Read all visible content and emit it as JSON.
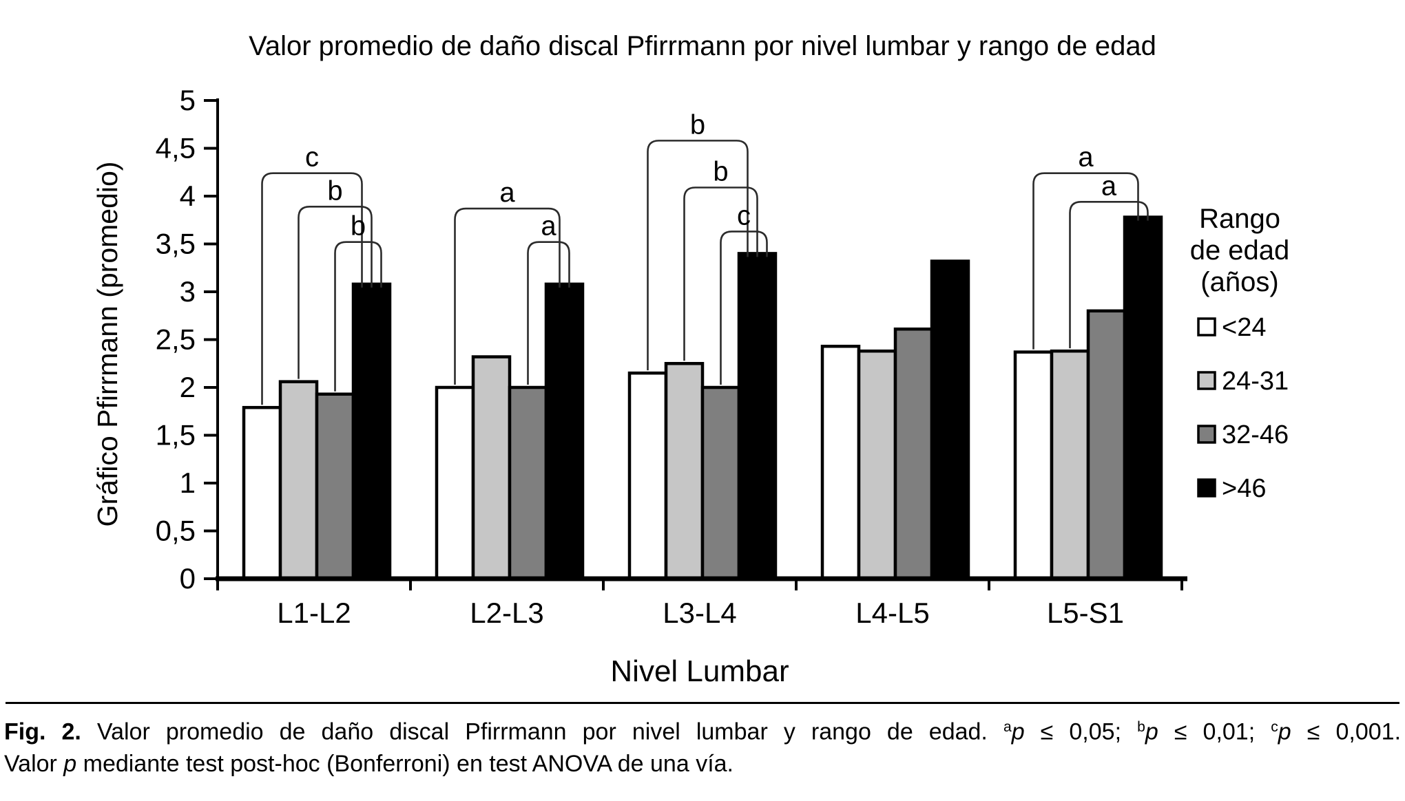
{
  "chart_data": {
    "type": "bar",
    "title": "Valor promedio de daño discal Pfirrmann por nivel lumbar y rango de edad",
    "xlabel": "Nivel Lumbar",
    "ylabel": "Gráfico Pfirrmann (promedio)",
    "categories": [
      "L1-L2",
      "L2-L3",
      "L3-L4",
      "L4-L5",
      "L5-S1"
    ],
    "series": [
      {
        "name": "<24",
        "color": "#ffffff",
        "values": [
          1.79,
          2.0,
          2.15,
          2.43,
          2.37
        ]
      },
      {
        "name": "24-31",
        "color": "#c6c6c6",
        "values": [
          2.06,
          2.32,
          2.25,
          2.38,
          2.38
        ]
      },
      {
        "name": "32-46",
        "color": "#7f7f7f",
        "values": [
          1.93,
          2.0,
          2.0,
          2.61,
          2.8
        ]
      },
      {
        "name": ">46",
        "color": "#000000",
        "values": [
          3.08,
          3.08,
          3.4,
          3.32,
          3.78
        ]
      }
    ],
    "ylim": [
      0,
      5
    ],
    "grid": false,
    "axis_color": "#000000",
    "yticks": [
      {
        "value": 0,
        "label": "0"
      },
      {
        "value": 0.5,
        "label": "0,5"
      },
      {
        "value": 1,
        "label": "1"
      },
      {
        "value": 1.5,
        "label": "1,5"
      },
      {
        "value": 2,
        "label": "2"
      },
      {
        "value": 2.5,
        "label": "2,5"
      },
      {
        "value": 3,
        "label": "3"
      },
      {
        "value": 3.5,
        "label": "3,5"
      },
      {
        "value": 4,
        "label": "4"
      },
      {
        "value": 4.5,
        "label": "4,5"
      },
      {
        "value": 5,
        "label": "5"
      }
    ],
    "legend_position": "right",
    "legend_title_lines": [
      "Rango",
      "de edad",
      "(años)"
    ],
    "significance_brackets": [
      {
        "category": "L1-L2",
        "from": "<24",
        "to": ">46",
        "label": "c",
        "height": 4.24
      },
      {
        "category": "L1-L2",
        "from": "24-31",
        "to": ">46",
        "label": "b",
        "height": 3.89
      },
      {
        "category": "L1-L2",
        "from": "32-46",
        "to": ">46",
        "label": "b",
        "height": 3.52
      },
      {
        "category": "L2-L3",
        "from": "<24",
        "to": ">46",
        "label": "a",
        "height": 3.87
      },
      {
        "category": "L2-L3",
        "from": "32-46",
        "to": ">46",
        "label": "a",
        "height": 3.52
      },
      {
        "category": "L3-L4",
        "from": "<24",
        "to": ">46",
        "label": "b",
        "height": 4.58
      },
      {
        "category": "L3-L4",
        "from": "24-31",
        "to": ">46",
        "label": "b",
        "height": 4.09
      },
      {
        "category": "L3-L4",
        "from": "32-46",
        "to": ">46",
        "label": "c",
        "height": 3.63
      },
      {
        "category": "L5-S1",
        "from": "<24",
        "to": ">46",
        "label": "a",
        "height": 4.24
      },
      {
        "category": "L5-S1",
        "from": "24-31",
        "to": ">46",
        "label": "a",
        "height": 3.94
      }
    ]
  },
  "caption": {
    "line1_parts": [
      {
        "t": "Fig. 2.",
        "s": "bold"
      },
      {
        "t": " Valor promedio de daño discal Pfirrmann por nivel lumbar y rango de edad. ",
        "s": "plain"
      },
      {
        "t": "a",
        "s": "sup"
      },
      {
        "t": "p",
        "s": "ital"
      },
      {
        "t": " ≤ 0,05; ",
        "s": "plain"
      },
      {
        "t": "b",
        "s": "sup"
      },
      {
        "t": "p",
        "s": "ital"
      },
      {
        "t": " ≤ 0,01; ",
        "s": "plain"
      },
      {
        "t": "c",
        "s": "sup"
      },
      {
        "t": "p",
        "s": "ital"
      },
      {
        "t": " ≤ 0,001.",
        "s": "plain"
      }
    ],
    "line2_parts": [
      {
        "t": "Valor ",
        "s": "plain"
      },
      {
        "t": "p",
        "s": "ital"
      },
      {
        "t": " mediante test post-hoc (Bonferroni) en test ANOVA de una vía.",
        "s": "plain"
      }
    ]
  }
}
